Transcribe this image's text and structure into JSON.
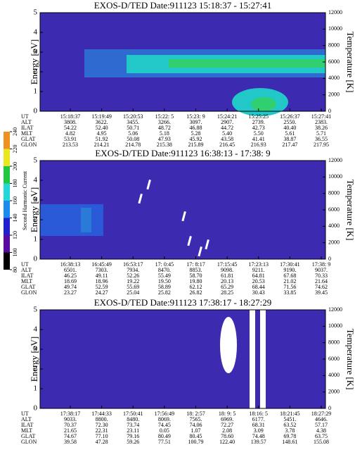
{
  "chart_data": [
    {
      "type": "heatmap",
      "title": "EXOS-D/TED   Date:911123   15:18:37 - 15:27:41",
      "y_label": "Energy [eV]",
      "y2_label": "Temperature [K]",
      "ylim": [
        0,
        5
      ],
      "yticks": [
        0,
        1,
        2,
        3,
        4,
        5
      ],
      "y2lim": [
        0,
        12000
      ],
      "y2ticks": [
        0,
        2000,
        4000,
        6000,
        8000,
        10000,
        12000
      ],
      "table": {
        "labels": [
          "UT",
          "ALT",
          "ILAT",
          "MLT",
          "GLAT",
          "GLON"
        ],
        "rows": [
          [
            "15:18:37",
            "15:19:49",
            "15:20:53",
            "15:22: 5",
            "15:23: 9",
            "15:24:21",
            "15:25:25",
            "15:26:37",
            "15:27:41"
          ],
          [
            "3808.",
            "3622.",
            "3455.",
            "3266.",
            "3097.",
            "2907.",
            "2739.",
            "2550.",
            "2383."
          ],
          [
            "54.22",
            "52.40",
            "50.71",
            "48.72",
            "46.88",
            "44.72",
            "42.73",
            "40.40",
            "38.26"
          ],
          [
            "4.82",
            "4.95",
            "5.06",
            "5.18",
            "5.28",
            "5.40",
            "5.50",
            "5.61",
            "5.71"
          ],
          [
            "53.91",
            "51.92",
            "50.08",
            "47.93",
            "45.92",
            "43.58",
            "41.41",
            "38.87",
            "36.55"
          ],
          [
            "213.53",
            "214.21",
            "214.78",
            "215.38",
            "215.89",
            "216.45",
            "216.93",
            "217.47",
            "217.95"
          ]
        ]
      }
    },
    {
      "type": "heatmap",
      "title": "EXOS-D/TED   Date:911123   16:38:13 - 17:38: 9",
      "y_label": "Energy [eV]",
      "y2_label": "Temperature [K]",
      "ylim": [
        0,
        5
      ],
      "yticks": [
        0,
        1,
        2,
        3,
        4,
        5
      ],
      "y2lim": [
        0,
        12000
      ],
      "y2ticks": [
        0,
        2000,
        4000,
        6000,
        8000,
        10000,
        12000
      ],
      "colorbar": {
        "label": "Second Harmonic Current",
        "lim": [
          80,
          240
        ],
        "ticks": [
          80,
          100,
          120,
          140,
          160,
          180,
          200,
          220,
          240
        ],
        "colors": [
          "#000000",
          "#5a0aa0",
          "#2020d0",
          "#1a8cf0",
          "#20d8d8",
          "#20c840",
          "#e8e820",
          "#f09020",
          "#e81010"
        ]
      },
      "table": {
        "labels": [
          "UT",
          "ALT",
          "ILAT",
          "MLT",
          "GLAT",
          "GLON"
        ],
        "rows": [
          [
            "16:38:13",
            "16:45:49",
            "16:53:17",
            "17: 0:45",
            "17: 8:17",
            "17:15:45",
            "17:23:13",
            "17:30:41",
            "17:38: 9"
          ],
          [
            "6501.",
            "7303.",
            "7934.",
            "8470.",
            "8853.",
            "9098.",
            "9211.",
            "9190.",
            "9037."
          ],
          [
            "46.25",
            "49.11",
            "52.26",
            "55.49",
            "58.70",
            "61.81",
            "64.81",
            "67.68",
            "70.33"
          ],
          [
            "18.69",
            "18.96",
            "19.22",
            "19.50",
            "19.80",
            "20.13",
            "20.53",
            "21.02",
            "21.64"
          ],
          [
            "49.74",
            "52.59",
            "55.69",
            "58.89",
            "62.12",
            "65.29",
            "68.44",
            "71.56",
            "74.62"
          ],
          [
            "23.27",
            "24.27",
            "25.04",
            "25.82",
            "26.82",
            "28.25",
            "30.43",
            "33.85",
            "39.45"
          ]
        ]
      }
    },
    {
      "type": "heatmap",
      "title": "EXOS-D/TED   Date:911123   17:38:17 - 18:27:29",
      "y_label": "Energy [eV]",
      "y2_label": "Temperature [K]",
      "ylim": [
        0,
        5
      ],
      "yticks": [
        0,
        1,
        2,
        3,
        4,
        5
      ],
      "y2lim": [
        0,
        12000
      ],
      "y2ticks": [
        0,
        2000,
        4000,
        6000,
        8000,
        10000,
        12000
      ],
      "table": {
        "labels": [
          "UT",
          "ALT",
          "ILAT",
          "MLT",
          "GLAT",
          "GLON"
        ],
        "rows": [
          [
            "17:38:17",
            "17:44:33",
            "17:50:41",
            "17:56:49",
            "18: 2:57",
            "18: 9: 5",
            "18:16: 5",
            "18:21:45",
            "18:27:29"
          ],
          [
            "9033.",
            "8800.",
            "8480.",
            "8069.",
            "7565.",
            "6969.",
            "6177.",
            "5451.",
            "4646."
          ],
          [
            "70.37",
            "72.30",
            "73.74",
            "74.45",
            "74.06",
            "72.27",
            "68.31",
            "63.52",
            "57.17"
          ],
          [
            "21.65",
            "22.31",
            "23.11",
            "0.05",
            "1.07",
            "2.08",
            "3.09",
            "3.78",
            "4.38"
          ],
          [
            "74.67",
            "77.10",
            "79.16",
            "80.49",
            "80.45",
            "78.60",
            "74.48",
            "69.78",
            "63.75"
          ],
          [
            "39.58",
            "47.28",
            "59.26",
            "77.51",
            "100.79",
            "122.40",
            "139.57",
            "148.61",
            "155.08"
          ]
        ]
      }
    }
  ]
}
